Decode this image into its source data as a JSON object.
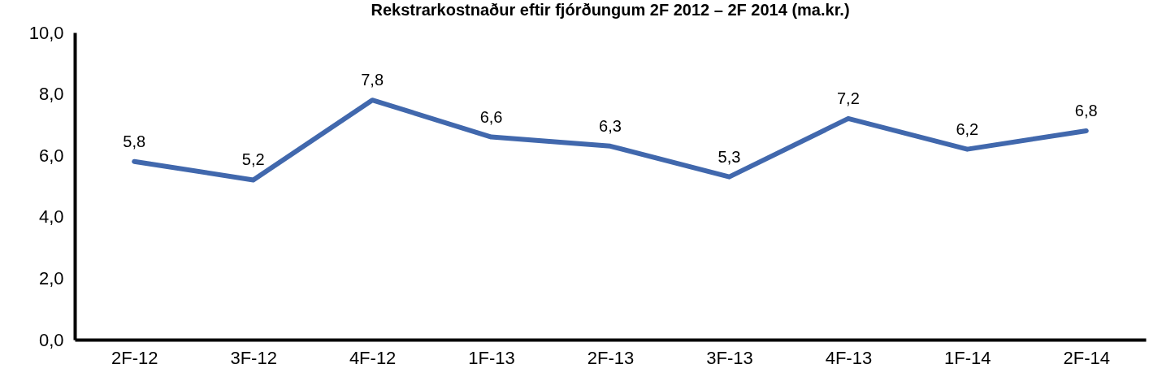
{
  "chart_data": {
    "type": "line",
    "title": "Rekstrarkostnaður eftir fjórðungum 2F 2012 – 2F 2014 (ma.kr.)",
    "categories": [
      "2F-12",
      "3F-12",
      "4F-12",
      "1F-13",
      "2F-13",
      "3F-13",
      "4F-13",
      "1F-14",
      "2F-14"
    ],
    "series": [
      {
        "color": "#4168ad",
        "values": [
          5.8,
          5.2,
          7.8,
          6.6,
          6.3,
          5.3,
          7.2,
          6.2,
          6.8
        ],
        "value_labels": [
          "5,8",
          "5,2",
          "7,8",
          "6,6",
          "6,3",
          "5,3",
          "7,2",
          "6,2",
          "6,8"
        ]
      }
    ],
    "ylim": [
      0,
      10
    ],
    "yticks": [
      {
        "value": 0,
        "label": "0,0"
      },
      {
        "value": 2,
        "label": "2,0"
      },
      {
        "value": 4,
        "label": "4,0"
      },
      {
        "value": 6,
        "label": "6,0"
      },
      {
        "value": 8,
        "label": "8,0"
      },
      {
        "value": 10,
        "label": "10,0"
      }
    ],
    "grid": false,
    "legend": false,
    "marker": "none",
    "line_style": "solid"
  }
}
